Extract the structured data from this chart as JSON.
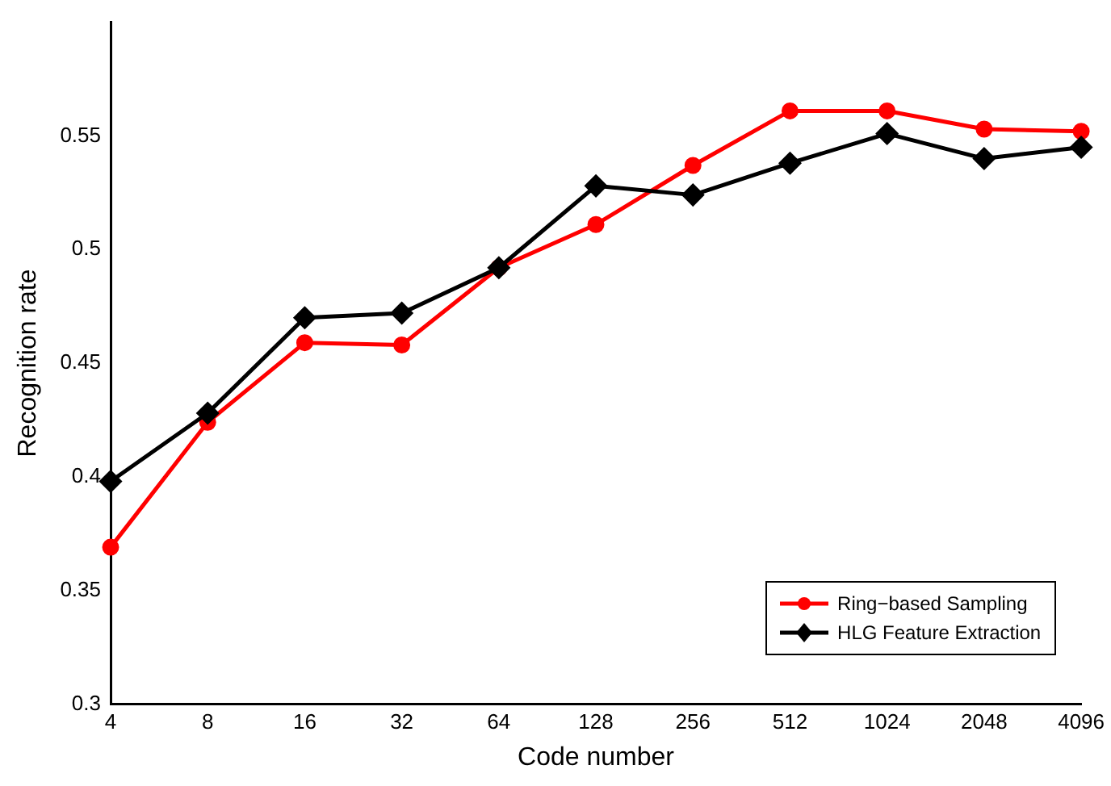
{
  "chart_data": {
    "type": "line",
    "xlabel": "Code number",
    "ylabel": "Recognition rate",
    "categories": [
      "4",
      "8",
      "16",
      "32",
      "64",
      "128",
      "256",
      "512",
      "1024",
      "2048",
      "4096"
    ],
    "series": [
      {
        "name": "Ring−based Sampling",
        "color": "#ff0000",
        "marker": "circle",
        "values": [
          0.369,
          0.424,
          0.459,
          0.458,
          0.492,
          0.511,
          0.537,
          0.561,
          0.561,
          0.553,
          0.552
        ]
      },
      {
        "name": "HLG Feature Extraction",
        "color": "#000000",
        "marker": "diamond",
        "values": [
          0.398,
          0.428,
          0.47,
          0.472,
          0.492,
          0.528,
          0.524,
          0.538,
          0.551,
          0.54,
          0.545
        ]
      }
    ],
    "ylim": [
      0.3,
      0.6
    ],
    "yticks": [
      0.3,
      0.35,
      0.4,
      0.45,
      0.5,
      0.55
    ],
    "grid": false,
    "legend": "bottom right",
    "line_style": "solid"
  }
}
